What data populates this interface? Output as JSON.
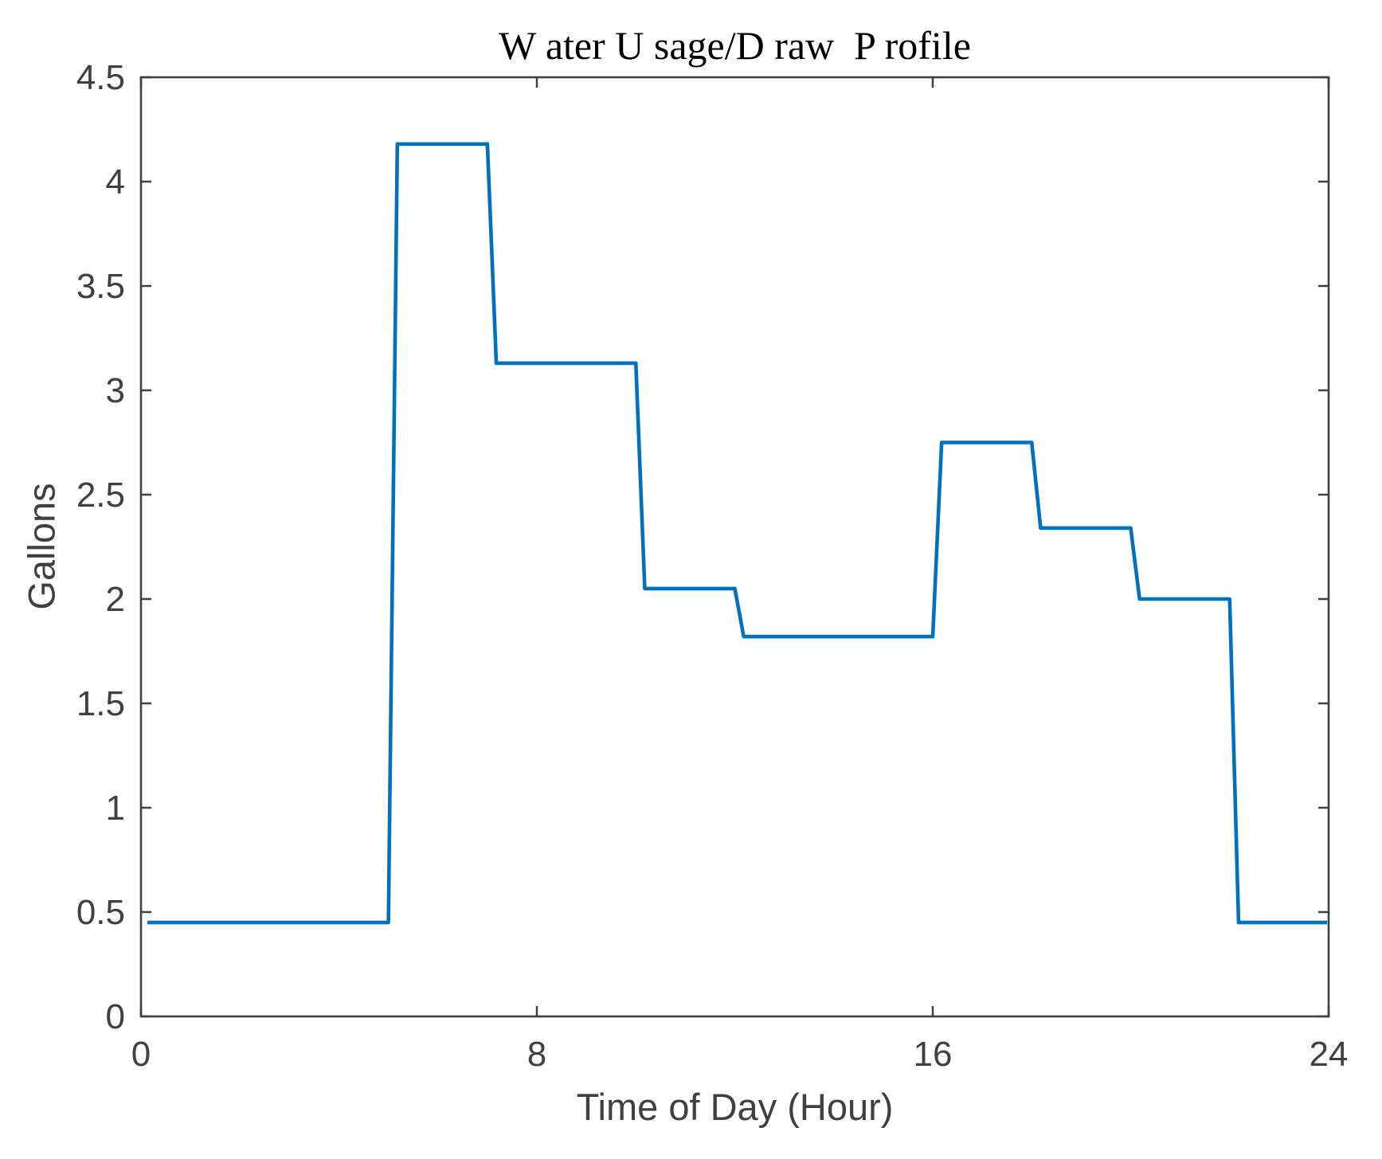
{
  "chart_data": {
    "type": "line",
    "subtype": "step-profile",
    "title": {
      "text": "Water Usage/Draw Profile",
      "display": "W ater U sage/D raw  P rofile"
    },
    "xlabel": "Time of Day (Hour)",
    "ylabel": "Gallons",
    "xlim": [
      0,
      24
    ],
    "ylim": [
      0,
      4.5
    ],
    "x_ticks": [
      {
        "value": 0,
        "label": "0"
      },
      {
        "value": 8,
        "label": "8"
      },
      {
        "value": 16,
        "label": "16"
      },
      {
        "value": 24,
        "label": "24"
      }
    ],
    "y_ticks": [
      {
        "value": 0,
        "label": "0"
      },
      {
        "value": 0.5,
        "label": "0.5"
      },
      {
        "value": 1,
        "label": "1"
      },
      {
        "value": 1.5,
        "label": "1.5"
      },
      {
        "value": 2,
        "label": "2"
      },
      {
        "value": 2.5,
        "label": "2.5"
      },
      {
        "value": 3,
        "label": "3"
      },
      {
        "value": 3.5,
        "label": "3.5"
      },
      {
        "value": 4,
        "label": "4"
      },
      {
        "value": 4.5,
        "label": "4.5"
      }
    ],
    "grid": false,
    "legend": null,
    "line_color": "#0072BD",
    "axis_color": "#404040",
    "title_color": "#000000",
    "steps": [
      {
        "start_hour": 0,
        "end_hour": 5,
        "gallons": 0.45
      },
      {
        "start_hour": 5,
        "end_hour": 7,
        "gallons": 4.18
      },
      {
        "start_hour": 7,
        "end_hour": 10,
        "gallons": 3.13
      },
      {
        "start_hour": 10,
        "end_hour": 12,
        "gallons": 2.05
      },
      {
        "start_hour": 12,
        "end_hour": 16,
        "gallons": 1.82
      },
      {
        "start_hour": 16,
        "end_hour": 18,
        "gallons": 2.75
      },
      {
        "start_hour": 18,
        "end_hour": 20,
        "gallons": 2.34
      },
      {
        "start_hour": 20,
        "end_hour": 22,
        "gallons": 2.0
      },
      {
        "start_hour": 22,
        "end_hour": 24,
        "gallons": 0.45
      }
    ]
  }
}
